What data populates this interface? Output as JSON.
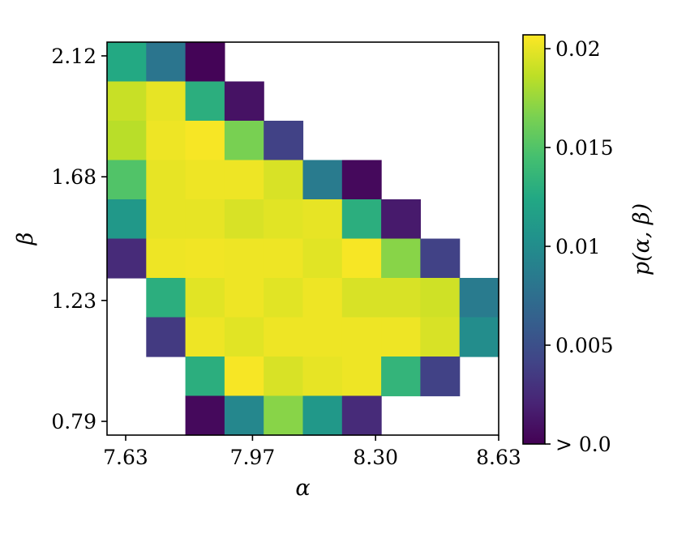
{
  "chart_data": {
    "type": "heatmap",
    "title": "",
    "xlabel": "α",
    "ylabel": "β",
    "x_ticks": [
      "7.63",
      "7.97",
      "8.30",
      "8.63"
    ],
    "y_ticks": [
      "2.12",
      "1.68",
      "1.23",
      "0.79"
    ],
    "x_range": [
      7.58,
      8.63
    ],
    "y_range": [
      0.74,
      2.17
    ],
    "colorbar": {
      "label": "p(α, β)",
      "ticks": [
        "> 0.0",
        "0.005",
        "0.01",
        "0.015",
        "0.02"
      ],
      "tick_values": [
        0,
        0.005,
        0.01,
        0.015,
        0.02
      ],
      "vmin": 0,
      "vmax": 0.0207,
      "colormap": "viridis"
    },
    "columns_alpha": [
      7.63,
      7.74,
      7.85,
      7.97,
      8.08,
      8.19,
      8.3,
      8.41,
      8.52,
      8.63
    ],
    "rows_beta": [
      2.12,
      1.97,
      1.82,
      1.68,
      1.53,
      1.38,
      1.23,
      1.08,
      0.94,
      0.79
    ],
    "values": [
      [
        0.0125,
        0.008,
        0.0002,
        null,
        null,
        null,
        null,
        null,
        null,
        null
      ],
      [
        0.019,
        0.02,
        0.013,
        0.001,
        null,
        null,
        null,
        null,
        null,
        null
      ],
      [
        0.0185,
        0.0202,
        0.0205,
        0.0165,
        0.004,
        null,
        null,
        null,
        null,
        null
      ],
      [
        0.015,
        0.02,
        0.0202,
        0.0202,
        0.0195,
        0.0085,
        0.0005,
        null,
        null,
        null
      ],
      [
        0.011,
        0.02,
        0.02,
        0.0195,
        0.0198,
        0.02,
        0.013,
        0.0015,
        null,
        null
      ],
      [
        0.0025,
        0.0202,
        0.0203,
        0.0202,
        0.0202,
        0.0198,
        0.0205,
        0.017,
        0.004,
        null
      ],
      [
        null,
        0.013,
        0.0198,
        0.0202,
        0.0198,
        0.0202,
        0.0195,
        0.0195,
        0.0192,
        0.0085
      ],
      [
        null,
        0.0035,
        0.0202,
        0.0198,
        0.0202,
        0.0202,
        0.0202,
        0.0202,
        0.0195,
        0.01
      ],
      [
        null,
        null,
        0.013,
        0.0205,
        0.0195,
        0.02,
        0.0202,
        0.0135,
        0.004,
        null
      ],
      [
        null,
        null,
        0.0005,
        0.0095,
        0.017,
        0.011,
        0.0025,
        null,
        null,
        null
      ]
    ]
  }
}
